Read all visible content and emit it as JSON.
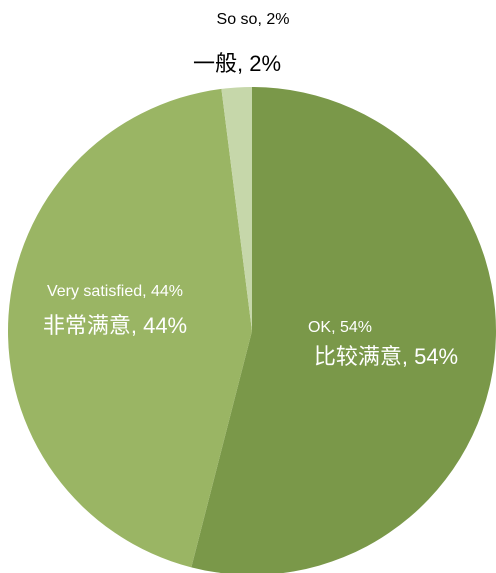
{
  "chart_data": {
    "type": "pie",
    "categories": [
      "OK",
      "Very satisfied",
      "So so"
    ],
    "values": [
      54,
      44,
      2
    ],
    "value_labels": [
      "OK, 54%",
      "Very satisfied, 44%",
      "So so, 2%"
    ],
    "labels_zh": [
      "比较满意, 54%",
      "非常满意, 44%",
      "一般, 2%"
    ],
    "colors": [
      "#7a9849",
      "#9ab564",
      "#c6d7aa"
    ]
  }
}
